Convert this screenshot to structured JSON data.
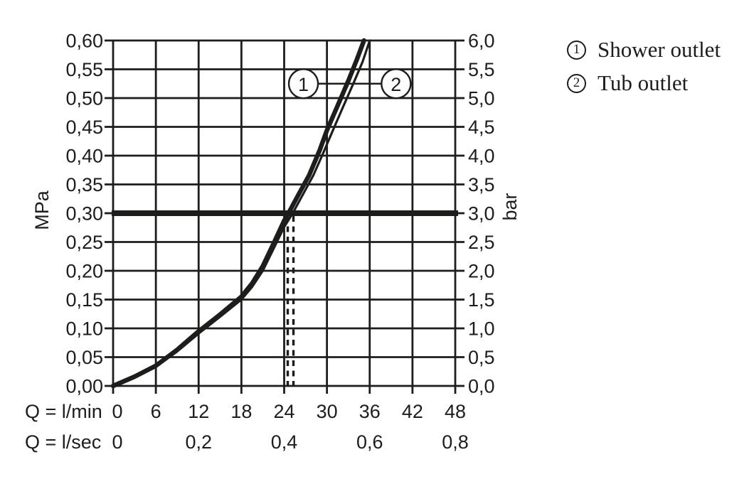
{
  "page": {
    "background": "#ffffff",
    "ink": "#1d1d1b"
  },
  "chart_data": {
    "type": "line",
    "title": "",
    "grid": true,
    "x_axis": {
      "label_primary": "Q = l/min",
      "label_secondary": "Q = l/sec",
      "range_lmin": [
        0,
        48
      ],
      "ticks_lmin": [
        "0",
        "6",
        "12",
        "18",
        "24",
        "30",
        "36",
        "42",
        "48"
      ],
      "ticks_lmin_values": [
        0,
        6,
        12,
        18,
        24,
        30,
        36,
        42,
        48
      ],
      "ticks_lsec": [
        {
          "text": "0",
          "at_lmin": 0
        },
        {
          "text": "0,2",
          "at_lmin": 12
        },
        {
          "text": "0,4",
          "at_lmin": 24
        },
        {
          "text": "0,6",
          "at_lmin": 36
        },
        {
          "text": "0,8",
          "at_lmin": 48
        }
      ]
    },
    "y_axis_left": {
      "label": "MPa",
      "range": [
        0,
        0.6
      ],
      "step": 0.05,
      "tick_labels_top_to_bottom": [
        "0,60",
        "0,55",
        "0,50",
        "0,45",
        "0,40",
        "0,35",
        "0,30",
        "0,25",
        "0,20",
        "0,15",
        "0,10",
        "0,05",
        "0,00"
      ]
    },
    "y_axis_right": {
      "label": "bar",
      "range": [
        0,
        6
      ],
      "step": 0.5,
      "tick_labels_top_to_bottom": [
        "6,0",
        "5,5",
        "5,0",
        "4,5",
        "4,0",
        "3,5",
        "3,0",
        "2,5",
        "2,0",
        "1,5",
        "1,0",
        "0,5",
        "0,0"
      ]
    },
    "series": [
      {
        "name": "Shower outlet",
        "marker": "1",
        "stroke_width": 6.4,
        "points_lmin_mpa": [
          [
            0,
            0
          ],
          [
            3,
            0.016
          ],
          [
            6,
            0.035
          ],
          [
            9,
            0.063
          ],
          [
            12,
            0.095
          ],
          [
            15,
            0.124
          ],
          [
            18,
            0.155
          ],
          [
            19.5,
            0.178
          ],
          [
            21,
            0.208
          ],
          [
            22.5,
            0.247
          ],
          [
            24,
            0.287
          ],
          [
            24.6,
            0.3
          ],
          [
            26,
            0.332
          ],
          [
            27.5,
            0.366
          ],
          [
            29,
            0.41
          ],
          [
            30,
            0.444
          ],
          [
            31.5,
            0.487
          ],
          [
            33,
            0.53
          ],
          [
            34.2,
            0.567
          ],
          [
            35.2,
            0.6
          ]
        ]
      },
      {
        "name": "Tub outlet",
        "marker": "2",
        "stroke_width": 3.2,
        "points_lmin_mpa": [
          [
            0,
            0
          ],
          [
            3,
            0.015
          ],
          [
            6,
            0.033
          ],
          [
            9,
            0.06
          ],
          [
            12,
            0.091
          ],
          [
            15,
            0.12
          ],
          [
            18,
            0.15
          ],
          [
            19.5,
            0.172
          ],
          [
            21,
            0.2
          ],
          [
            22.5,
            0.238
          ],
          [
            24,
            0.276
          ],
          [
            25.2,
            0.3
          ],
          [
            26.6,
            0.332
          ],
          [
            28.1,
            0.366
          ],
          [
            29.6,
            0.408
          ],
          [
            30.7,
            0.44
          ],
          [
            32.2,
            0.483
          ],
          [
            33.8,
            0.528
          ],
          [
            35,
            0.563
          ],
          [
            36,
            0.6
          ]
        ]
      }
    ],
    "reference_line": {
      "value_mpa": 0.3,
      "value_bar": 3.0,
      "style": "thick"
    },
    "dashed_guides_lmin": [
      24.5,
      25.3
    ],
    "annotations": {
      "series_labels": [
        {
          "text": "1",
          "x_lmin": 26.7,
          "y_mpa": 0.525
        },
        {
          "text": "2",
          "x_lmin": 39.7,
          "y_mpa": 0.525
        }
      ],
      "connector": true
    }
  },
  "legend": {
    "items": [
      {
        "symbol": "1",
        "label": "Shower outlet"
      },
      {
        "symbol": "2",
        "label": "Tub outlet"
      }
    ]
  }
}
